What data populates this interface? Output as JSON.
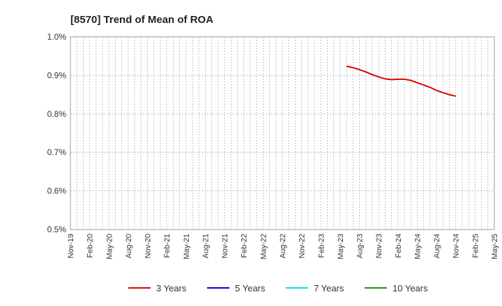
{
  "chart_data": {
    "type": "line",
    "title": "[8570]  Trend of Mean of ROA",
    "xlabel": "",
    "ylabel": "",
    "ylim": [
      0.5,
      1.0
    ],
    "yticks": [
      "1.0%",
      "0.9%",
      "0.8%",
      "0.7%",
      "0.6%",
      "0.5%"
    ],
    "xticks": [
      "Nov-19",
      "Feb-20",
      "May-20",
      "Aug-20",
      "Nov-20",
      "Feb-21",
      "May-21",
      "Aug-21",
      "Nov-21",
      "Feb-22",
      "May-22",
      "Aug-22",
      "Nov-22",
      "Feb-23",
      "May-23",
      "Aug-23",
      "Nov-23",
      "Feb-24",
      "May-24",
      "Aug-24",
      "Nov-24",
      "Feb-25",
      "May-25"
    ],
    "grid": true,
    "legend_position": "bottom",
    "series": [
      {
        "name": "3 Years",
        "color": "#dd0000",
        "x": [
          "Jun-23",
          "Jul-23",
          "Aug-23",
          "Sep-23",
          "Oct-23",
          "Nov-23",
          "Dec-23",
          "Jan-24",
          "Feb-24",
          "Mar-24",
          "Apr-24",
          "May-24",
          "Jun-24",
          "Jul-24",
          "Aug-24",
          "Sep-24",
          "Oct-24",
          "Nov-24"
        ],
        "values": [
          0.924,
          0.92,
          0.915,
          0.909,
          0.902,
          0.896,
          0.891,
          0.889,
          0.89,
          0.89,
          0.887,
          0.881,
          0.875,
          0.869,
          0.861,
          0.855,
          0.85,
          0.846
        ]
      },
      {
        "name": "5 Years",
        "color": "#0000cc",
        "x": [],
        "values": []
      },
      {
        "name": "7 Years",
        "color": "#00e5ee",
        "x": [],
        "values": []
      },
      {
        "name": "10 Years",
        "color": "#228b22",
        "x": [],
        "values": []
      }
    ]
  }
}
